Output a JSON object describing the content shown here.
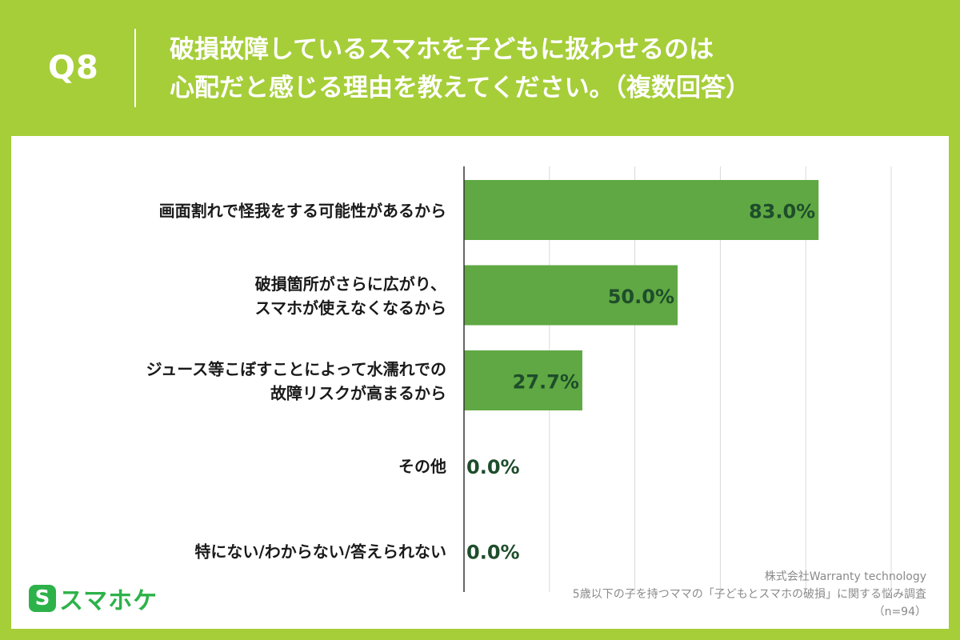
{
  "header": {
    "question_number": "Q8",
    "title_line1": "破損故障しているスマホを子どもに扱わせるのは",
    "title_line2": "心配だと感じる理由を教えてください。（複数回答）"
  },
  "chart_data": {
    "type": "bar",
    "orientation": "horizontal",
    "categories": [
      [
        "画面割れで怪我をする可能性があるから"
      ],
      [
        "破損箇所がさらに広がり、",
        "スマホが使えなくなるから"
      ],
      [
        "ジュース等こぼすことによって水濡れでの",
        "故障リスクが高まるから"
      ],
      [
        "その他"
      ],
      [
        "特にない/わからない/答えられない"
      ]
    ],
    "values": [
      83.0,
      50.0,
      27.7,
      0.0,
      0.0
    ],
    "value_labels": [
      "83.0%",
      "50.0%",
      "27.7%",
      "0.0%",
      "0.0%"
    ],
    "xlim": [
      0,
      100
    ],
    "grid": true,
    "bar_color": "#5fa843",
    "label_color": "#1e4d2b"
  },
  "logo": {
    "icon": "S",
    "text": "スマホケ"
  },
  "source": {
    "line1": "株式会社Warranty technology",
    "line2": "5歳以下の子を持つママの「子どもとスマホの破損」に関する悩み調査",
    "line3": "（n=94）"
  },
  "colors": {
    "background": "#a6ce39",
    "panel": "#ffffff",
    "logo": "#2db24a"
  }
}
